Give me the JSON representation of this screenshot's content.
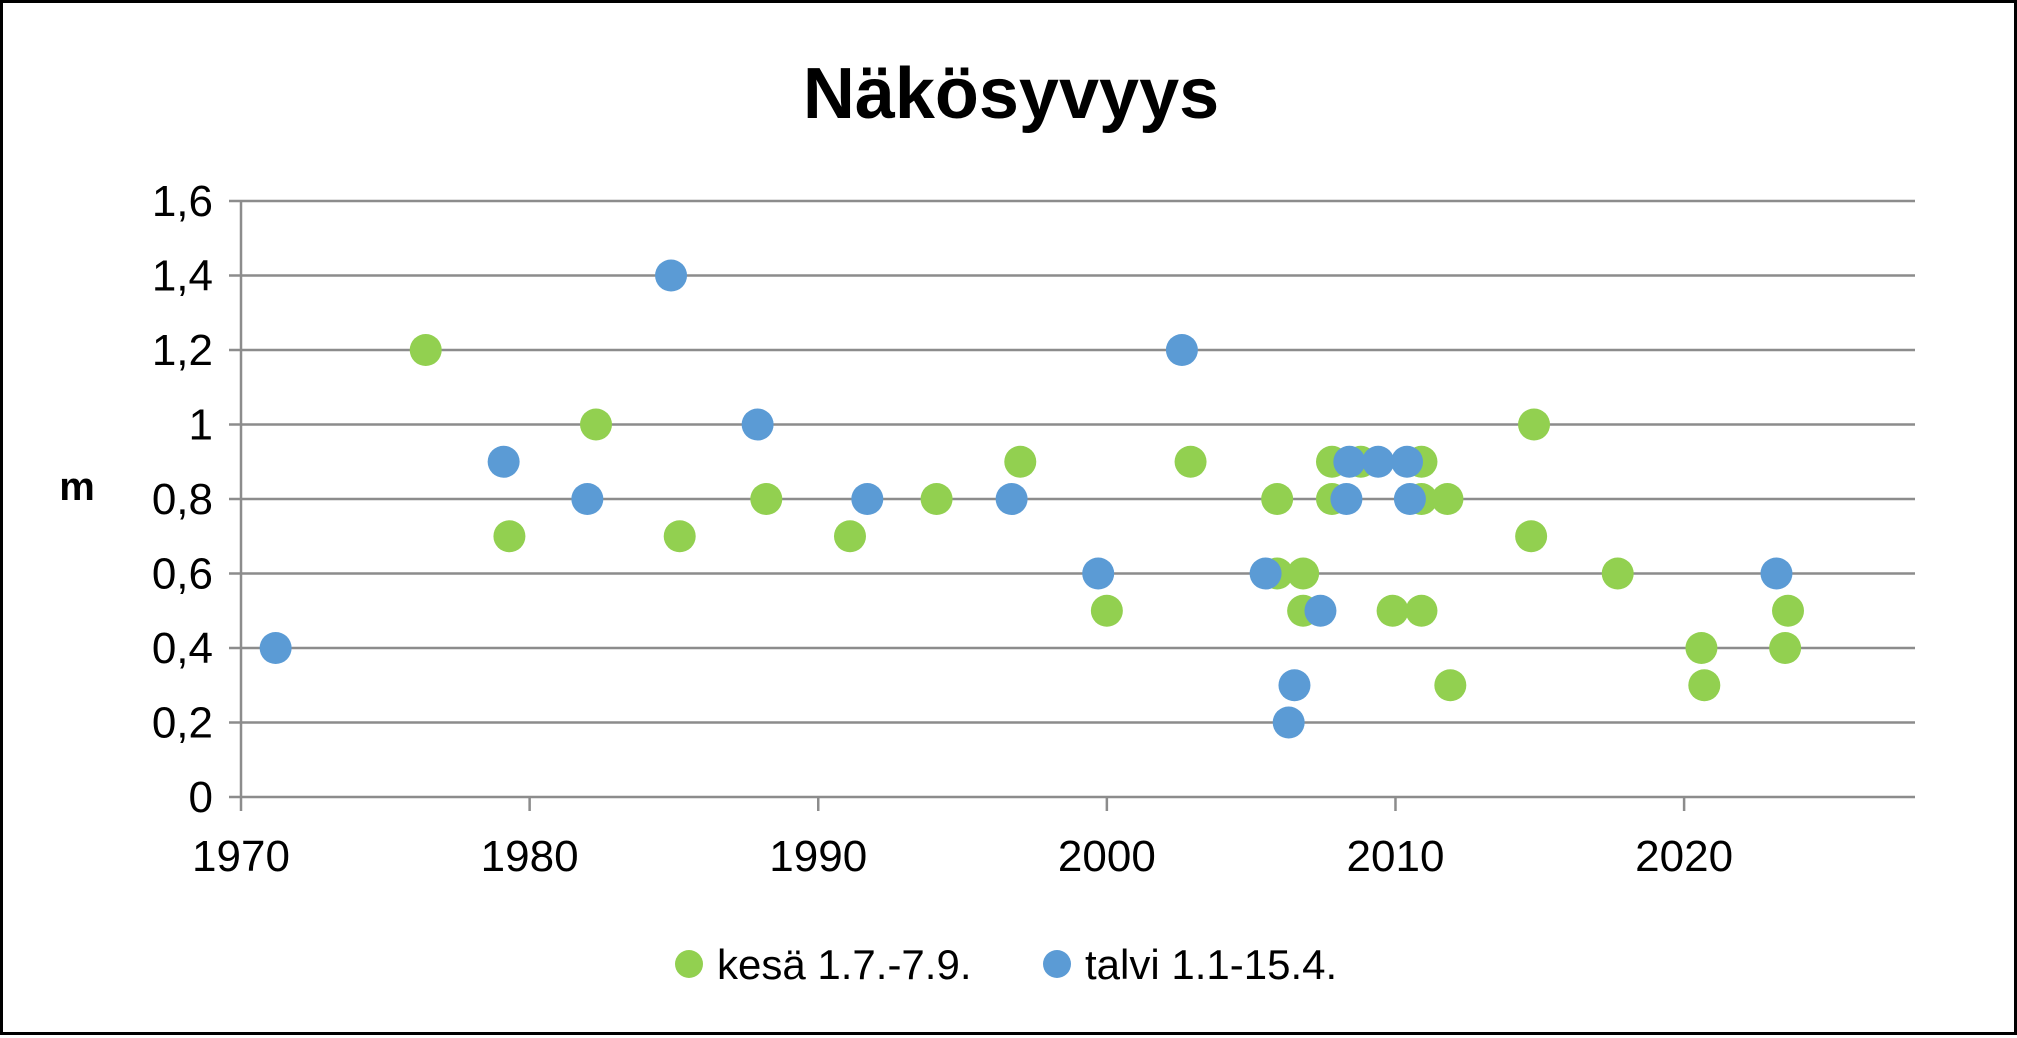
{
  "chart_data": {
    "type": "scatter",
    "title": "Näkösyvyys",
    "xlabel": "",
    "ylabel": "m",
    "xlim": [
      1970,
      2028
    ],
    "ylim": [
      0,
      1.6
    ],
    "x_ticks": [
      "1970",
      "1980",
      "1990",
      "2000",
      "2010",
      "2020"
    ],
    "y_ticks": [
      "0",
      "0,2",
      "0,4",
      "0,6",
      "0,8",
      "1",
      "1,2",
      "1,4",
      "1,6"
    ],
    "grid": true,
    "legend_position": "bottom",
    "series": [
      {
        "name": "kesä 1.7.-7.9.",
        "color": "#92d050",
        "points": [
          [
            1976.4,
            1.2
          ],
          [
            1979.3,
            0.7
          ],
          [
            1982.3,
            1.0
          ],
          [
            1985.2,
            0.7
          ],
          [
            1988.2,
            0.8
          ],
          [
            1991.1,
            0.7
          ],
          [
            1994.1,
            0.8
          ],
          [
            1997.0,
            0.9
          ],
          [
            2000.0,
            0.5
          ],
          [
            2002.9,
            0.9
          ],
          [
            2005.9,
            0.8
          ],
          [
            2005.9,
            0.6
          ],
          [
            2006.8,
            0.6
          ],
          [
            2006.8,
            0.5
          ],
          [
            2007.8,
            0.9
          ],
          [
            2007.8,
            0.8
          ],
          [
            2008.8,
            0.9
          ],
          [
            2009.9,
            0.5
          ],
          [
            2010.9,
            0.9
          ],
          [
            2010.9,
            0.8
          ],
          [
            2010.9,
            0.5
          ],
          [
            2011.8,
            0.8
          ],
          [
            2011.9,
            0.3
          ],
          [
            2014.8,
            1.0
          ],
          [
            2014.7,
            0.7
          ],
          [
            2017.7,
            0.6
          ],
          [
            2020.6,
            0.4
          ],
          [
            2020.7,
            0.3
          ],
          [
            2023.6,
            0.5
          ],
          [
            2023.5,
            0.4
          ]
        ]
      },
      {
        "name": "talvi 1.1-15.4.",
        "color": "#5b9bd5",
        "points": [
          [
            1971.2,
            0.4
          ],
          [
            1979.1,
            0.9
          ],
          [
            1982.0,
            0.8
          ],
          [
            1984.9,
            1.4
          ],
          [
            1987.9,
            1.0
          ],
          [
            1991.7,
            0.8
          ],
          [
            1996.7,
            0.8
          ],
          [
            1999.7,
            0.6
          ],
          [
            2002.6,
            1.2
          ],
          [
            2005.5,
            0.6
          ],
          [
            2006.3,
            0.2
          ],
          [
            2006.5,
            0.3
          ],
          [
            2007.4,
            0.5
          ],
          [
            2008.3,
            0.8
          ],
          [
            2008.4,
            0.9
          ],
          [
            2009.4,
            0.9
          ],
          [
            2010.4,
            0.9
          ],
          [
            2010.5,
            0.8
          ],
          [
            2023.2,
            0.6
          ]
        ]
      }
    ]
  }
}
